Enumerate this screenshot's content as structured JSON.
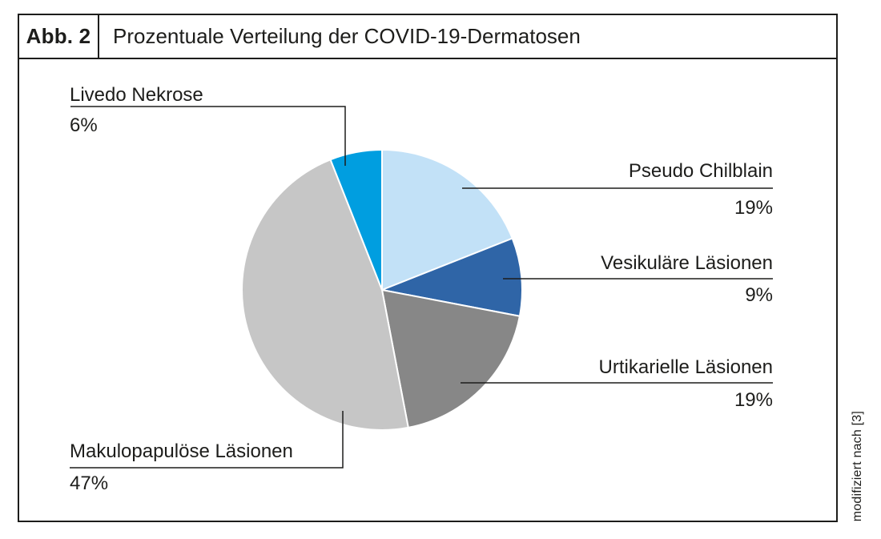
{
  "figure": {
    "tag": "Abb. 2",
    "title": "Prozentuale Verteilung der COVID-19-Dermatosen",
    "source_note": "modifiziert nach [3]"
  },
  "chart_data": {
    "type": "pie",
    "title": "Prozentuale Verteilung der COVID-19-Dermatosen",
    "unit": "percent",
    "start_angle_deg": 0,
    "direction": "clockwise",
    "legend_position": "none",
    "labels_style": "callout-lines",
    "slices": [
      {
        "label": "Pseudo Chilblain",
        "value": 19,
        "display": "19%",
        "color": "#c2e1f7",
        "label_side": "right"
      },
      {
        "label": "Vesikuläre Läsionen",
        "value": 9,
        "display": "9%",
        "color": "#2f65a7",
        "label_side": "right"
      },
      {
        "label": "Urtikarielle Läsionen",
        "value": 19,
        "display": "19%",
        "color": "#878787",
        "label_side": "right"
      },
      {
        "label": "Makulopapulöse Läsionen",
        "value": 47,
        "display": "47%",
        "color": "#c6c6c6",
        "label_side": "bottom-left"
      },
      {
        "label": "Livedo Nekrose",
        "value": 6,
        "display": "6%",
        "color": "#009ee0",
        "label_side": "top-left"
      }
    ]
  },
  "colors": {
    "frame_border": "#1d1d1b",
    "text": "#1d1d1b",
    "leader_line": "#1d1d1b",
    "slice_divider": "#ffffff",
    "background": "#ffffff"
  }
}
